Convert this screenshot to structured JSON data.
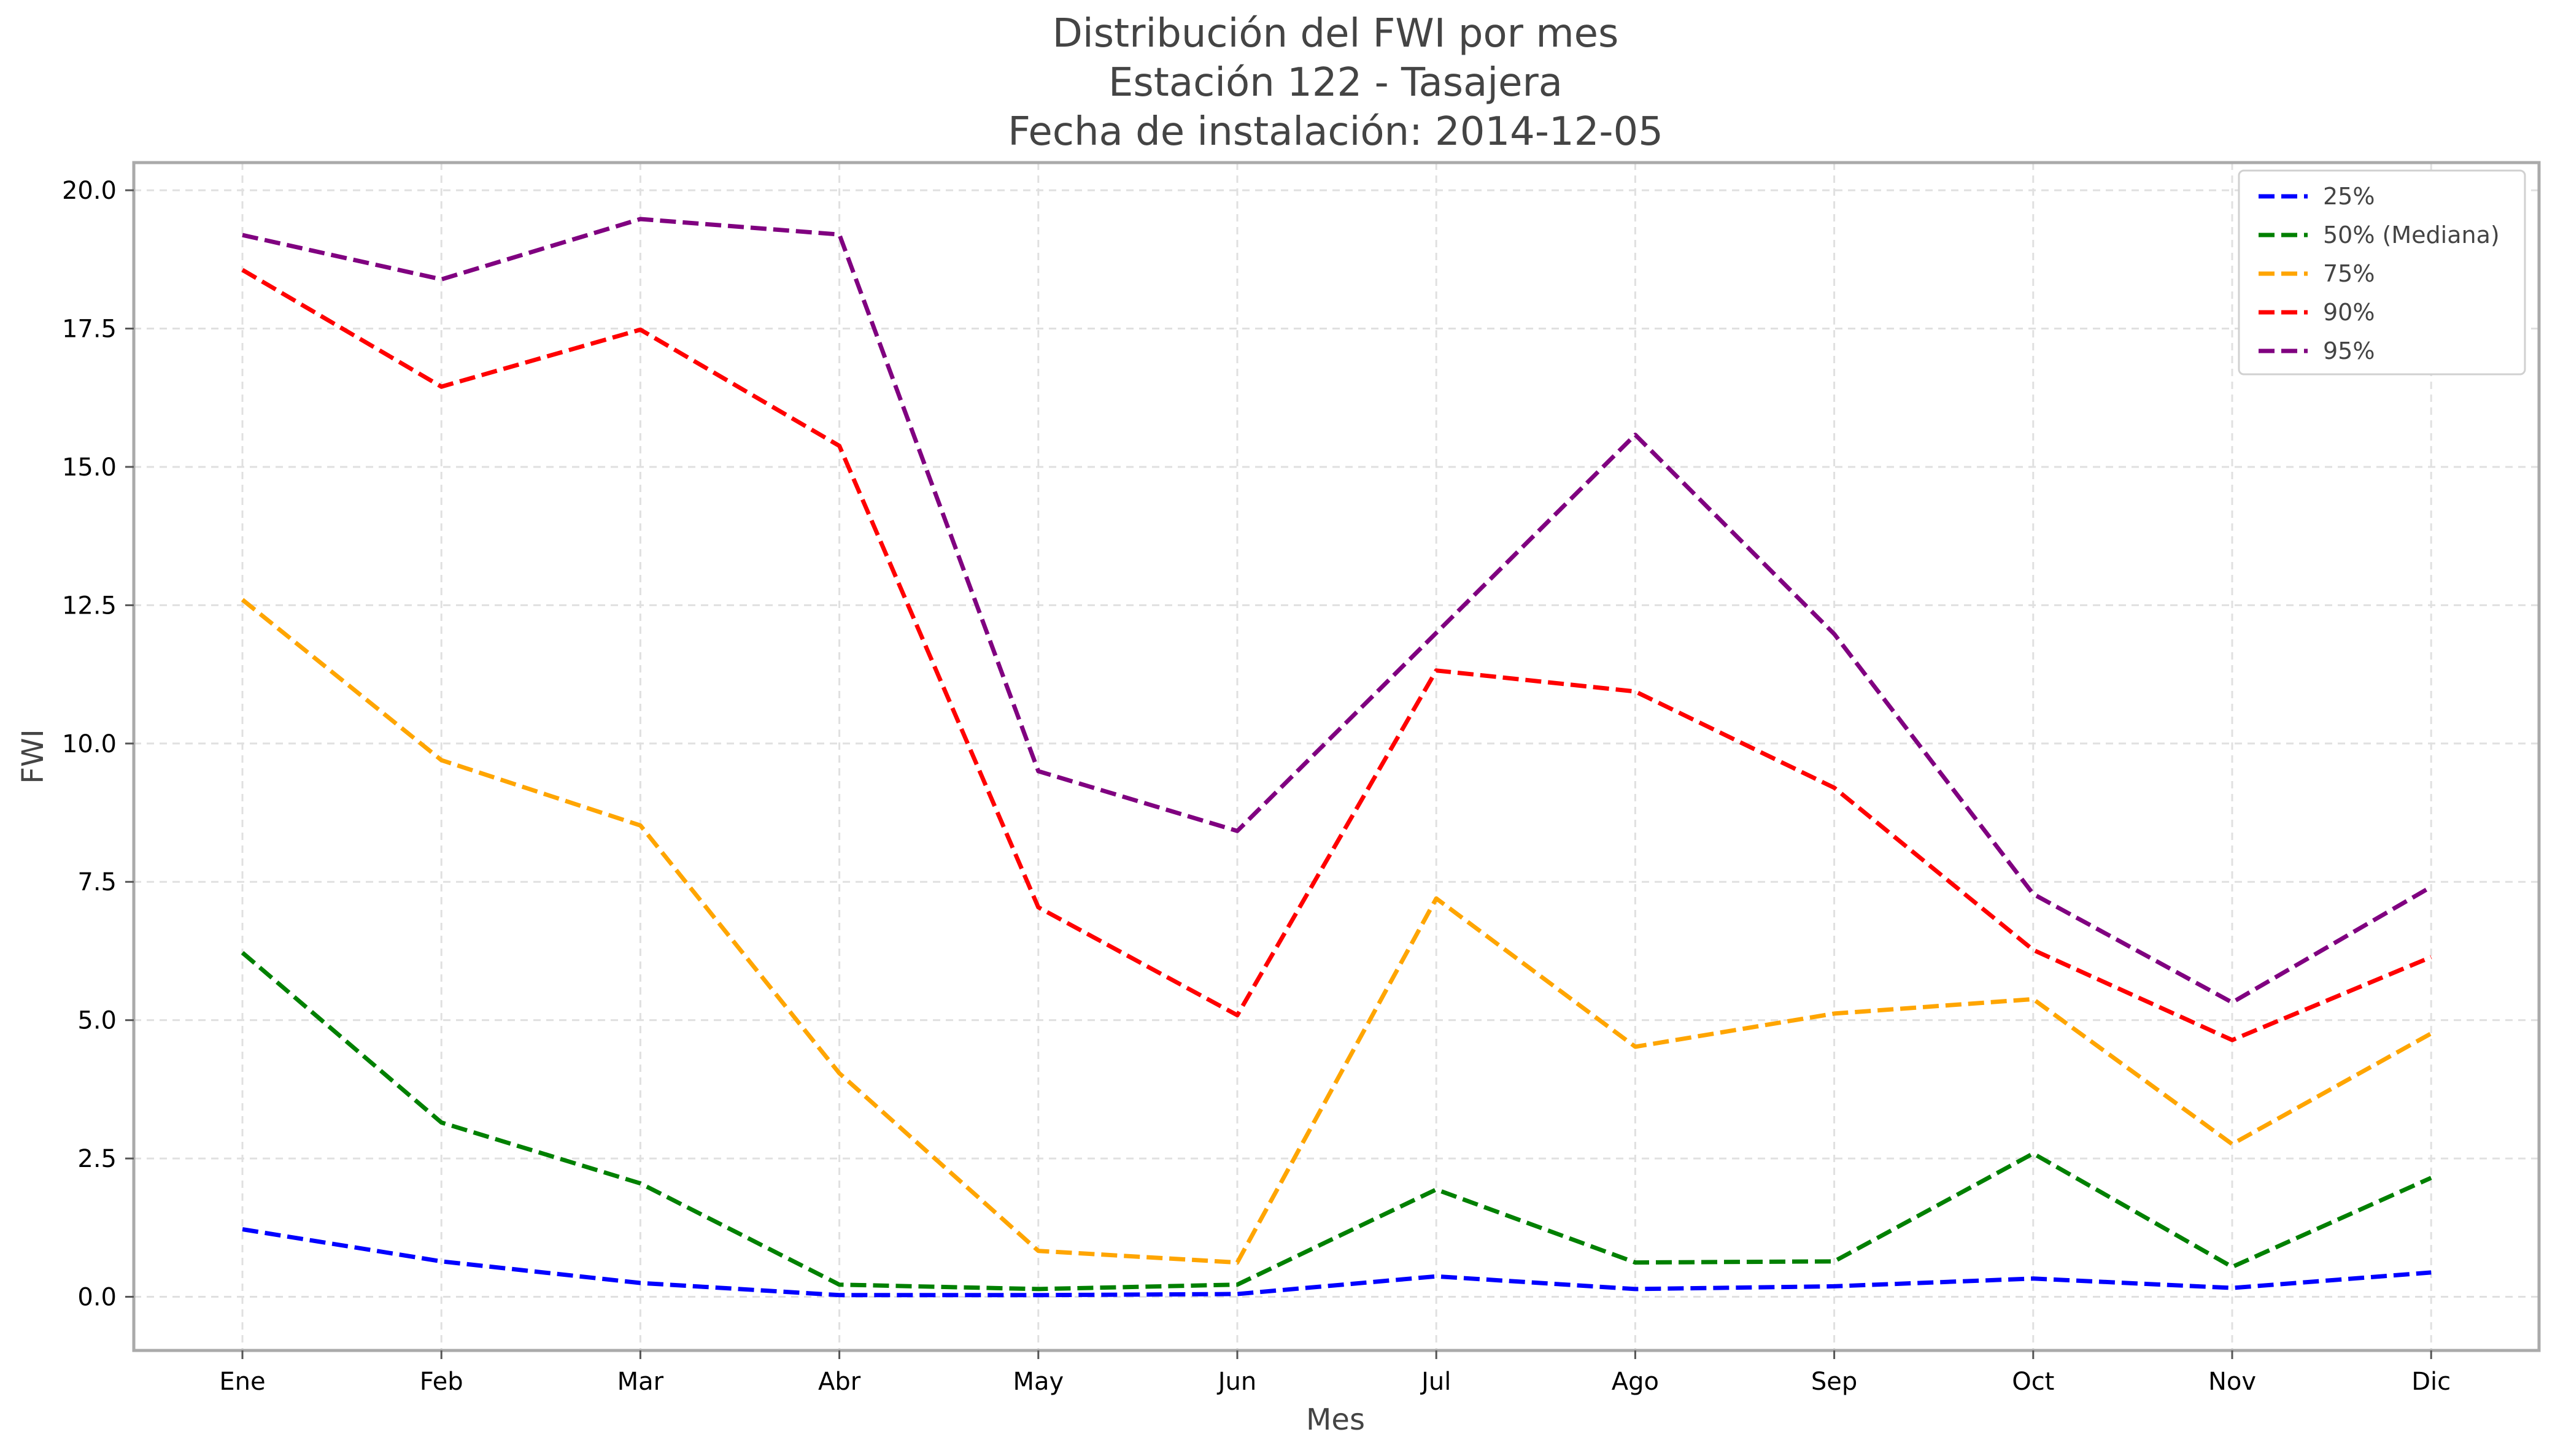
{
  "chart_data": {
    "type": "line",
    "title_lines": [
      "Distribución del FWI por mes",
      "Estación 122 - Tasajera",
      "Fecha de instalación: 2014-12-05"
    ],
    "xlabel": "Mes",
    "ylabel": "FWI",
    "categories": [
      "Ene",
      "Feb",
      "Mar",
      "Abr",
      "May",
      "Jun",
      "Jul",
      "Ago",
      "Sep",
      "Oct",
      "Nov",
      "Dic"
    ],
    "ylim": [
      -0.97,
      20.5
    ],
    "yticks": [
      0.0,
      2.5,
      5.0,
      7.5,
      10.0,
      12.5,
      15.0,
      17.5,
      20.0
    ],
    "ytick_labels": [
      "0.0",
      "2.5",
      "5.0",
      "7.5",
      "10.0",
      "12.5",
      "15.0",
      "17.5",
      "20.0"
    ],
    "grid": true,
    "line_style": "dashed",
    "legend_position": "top-right",
    "series": [
      {
        "name": "25%",
        "color": "#0000ff",
        "values": [
          1.22,
          0.64,
          0.25,
          0.03,
          0.03,
          0.05,
          0.37,
          0.14,
          0.19,
          0.33,
          0.16,
          0.44
        ]
      },
      {
        "name": "50% (Mediana)",
        "color": "#008000",
        "values": [
          6.22,
          3.15,
          2.05,
          0.22,
          0.14,
          0.22,
          1.94,
          0.62,
          0.64,
          2.59,
          0.54,
          2.15
        ]
      },
      {
        "name": "75%",
        "color": "#ffa500",
        "values": [
          12.6,
          9.7,
          8.52,
          4.04,
          0.83,
          0.62,
          7.2,
          4.52,
          5.12,
          5.38,
          2.76,
          4.76
        ]
      },
      {
        "name": "90%",
        "color": "#ff0000",
        "values": [
          18.56,
          16.45,
          17.48,
          15.38,
          7.04,
          5.09,
          11.32,
          10.94,
          9.2,
          6.27,
          4.64,
          6.14
        ]
      },
      {
        "name": "95%",
        "color": "#800080",
        "values": [
          19.19,
          18.39,
          19.48,
          19.2,
          9.5,
          8.42,
          12.0,
          15.58,
          11.98,
          7.28,
          5.32,
          7.41
        ]
      }
    ]
  }
}
